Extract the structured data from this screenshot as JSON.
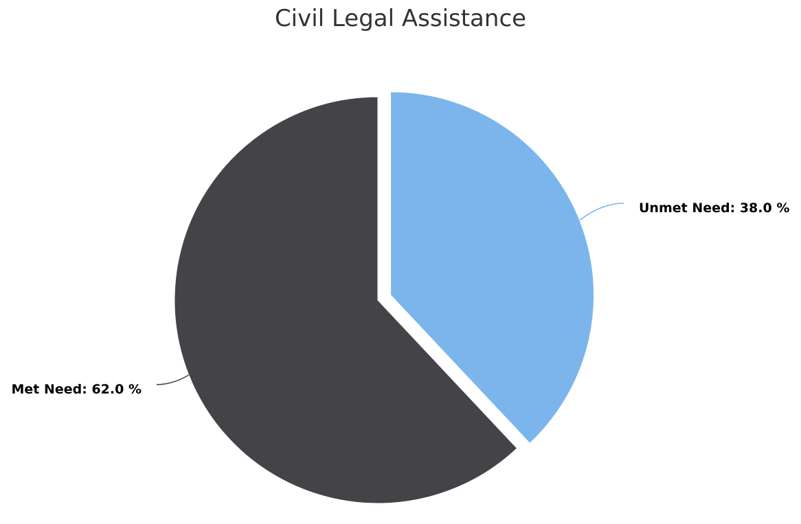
{
  "chart_data": {
    "type": "pie",
    "title": "Civil Legal Assistance",
    "unit": "%",
    "slices": [
      {
        "name": "Unmet Need",
        "value": 38.0,
        "label": "Unmet Need: 38.0 %",
        "color": "#7cb5ec",
        "exploded": true
      },
      {
        "name": "Met Need",
        "value": 62.0,
        "label": "Met Need: 62.0 %",
        "color": "#434348",
        "exploded": false
      }
    ],
    "start_angle": "12 o'clock",
    "direction": "clockwise",
    "legend": "none"
  }
}
